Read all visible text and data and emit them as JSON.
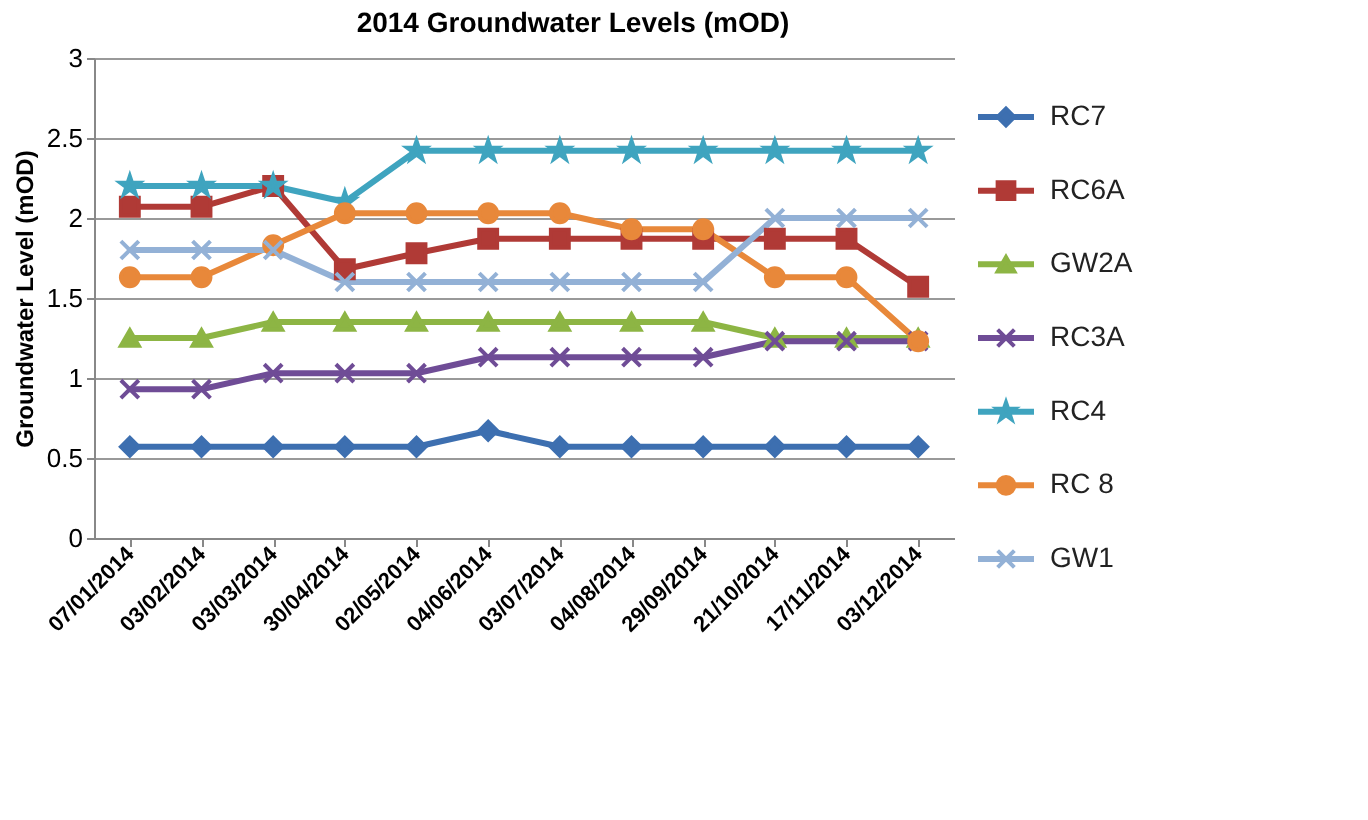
{
  "chart_data": {
    "type": "line",
    "title": "2014 Groundwater Levels (mOD)",
    "ylabel": "Groundwater Level (mOD)",
    "categories": [
      "07/01/2014",
      "03/02/2014",
      "03/03/2014",
      "30/04/2014",
      "02/05/2014",
      "04/06/2014",
      "03/07/2014",
      "04/08/2014",
      "29/09/2014",
      "21/10/2014",
      "17/11/2014",
      "03/12/2014"
    ],
    "series": [
      {
        "name": "RC7",
        "color": "#3d6fb0",
        "marker": "diamond",
        "values": [
          0.57,
          0.57,
          0.57,
          0.57,
          0.57,
          0.67,
          0.57,
          0.57,
          0.57,
          0.57,
          0.57,
          0.57
        ]
      },
      {
        "name": "RC6A",
        "color": "#b03a36",
        "marker": "square",
        "values": [
          2.07,
          2.07,
          2.2,
          1.68,
          1.78,
          1.87,
          1.87,
          1.87,
          1.87,
          1.87,
          1.87,
          1.57
        ]
      },
      {
        "name": "GW2A",
        "color": "#8db544",
        "marker": "triangle",
        "values": [
          1.25,
          1.25,
          1.35,
          1.35,
          1.35,
          1.35,
          1.35,
          1.35,
          1.35,
          1.25,
          1.25,
          1.25
        ]
      },
      {
        "name": "RC3A",
        "color": "#6f4c96",
        "marker": "cross",
        "values": [
          0.93,
          0.93,
          1.03,
          1.03,
          1.03,
          1.13,
          1.13,
          1.13,
          1.13,
          1.23,
          1.23,
          1.23
        ]
      },
      {
        "name": "RC4",
        "color": "#3fa4bf",
        "marker": "star",
        "values": [
          2.2,
          2.2,
          2.2,
          2.1,
          2.42,
          2.42,
          2.42,
          2.42,
          2.42,
          2.42,
          2.42,
          2.42
        ]
      },
      {
        "name": "RC 8",
        "color": "#e8883a",
        "marker": "circle",
        "values": [
          1.63,
          1.63,
          1.83,
          2.03,
          2.03,
          2.03,
          2.03,
          1.93,
          1.93,
          1.63,
          1.63,
          1.23
        ]
      },
      {
        "name": "GW1",
        "color": "#93b1d6",
        "marker": "cross",
        "values": [
          1.8,
          1.8,
          1.8,
          1.6,
          1.6,
          1.6,
          1.6,
          1.6,
          1.6,
          2.0,
          2.0,
          2.0
        ]
      }
    ],
    "ylim": [
      0,
      3
    ],
    "yticks": [
      0,
      0.5,
      1,
      1.5,
      2,
      2.5,
      3
    ],
    "grid": "y",
    "legend": "right",
    "line_style": "solid"
  }
}
